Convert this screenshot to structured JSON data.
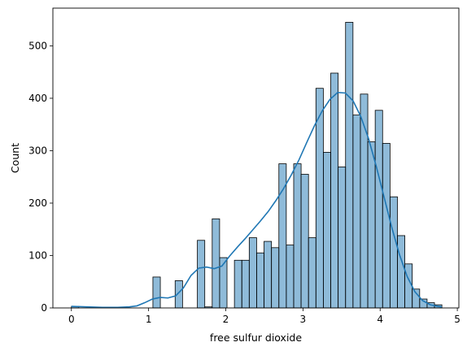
{
  "chart_data": {
    "type": "histogram",
    "title": "",
    "xlabel": "free sulfur dioxide",
    "ylabel": "Count",
    "xlim": [
      -0.24,
      5.02
    ],
    "ylim": [
      0,
      572
    ],
    "xticks": [
      0,
      1,
      2,
      3,
      4,
      5
    ],
    "yticks": [
      0,
      100,
      200,
      300,
      400,
      500
    ],
    "bar_color": "#1f77b4",
    "bar_alpha": 0.5,
    "edge_color": "#000000",
    "line_color": "#1f77b4",
    "bins": {
      "start": 0,
      "width": 0.096,
      "counts": [
        3,
        0,
        0,
        0,
        0,
        0,
        0,
        0,
        0,
        0,
        0,
        59,
        0,
        0,
        52,
        0,
        0,
        129,
        2,
        170,
        96,
        0,
        91,
        91,
        134,
        105,
        127,
        115,
        275,
        120,
        275,
        255,
        134,
        419,
        297,
        448,
        269,
        545,
        368,
        408,
        317,
        377,
        314,
        212,
        138,
        84,
        36,
        17,
        10,
        6
      ]
    },
    "kde": {
      "x": [
        0,
        0.2,
        0.4,
        0.6,
        0.75,
        0.85,
        0.95,
        1.05,
        1.15,
        1.25,
        1.35,
        1.45,
        1.55,
        1.65,
        1.75,
        1.85,
        1.95,
        2.05,
        2.15,
        2.25,
        2.35,
        2.45,
        2.55,
        2.65,
        2.75,
        2.85,
        2.95,
        3.05,
        3.15,
        3.25,
        3.35,
        3.45,
        3.55,
        3.65,
        3.75,
        3.85,
        3.95,
        4.05,
        4.15,
        4.25,
        4.35,
        4.45,
        4.55,
        4.65,
        4.75,
        4.8
      ],
      "y": [
        3,
        2,
        1,
        1,
        2,
        4,
        10,
        17,
        20,
        19,
        23,
        38,
        62,
        76,
        78,
        75,
        80,
        99,
        116,
        132,
        149,
        166,
        184,
        205,
        228,
        254,
        283,
        316,
        348,
        376,
        398,
        411,
        410,
        395,
        365,
        323,
        270,
        212,
        154,
        102,
        60,
        31,
        14,
        6,
        3,
        2
      ]
    }
  }
}
